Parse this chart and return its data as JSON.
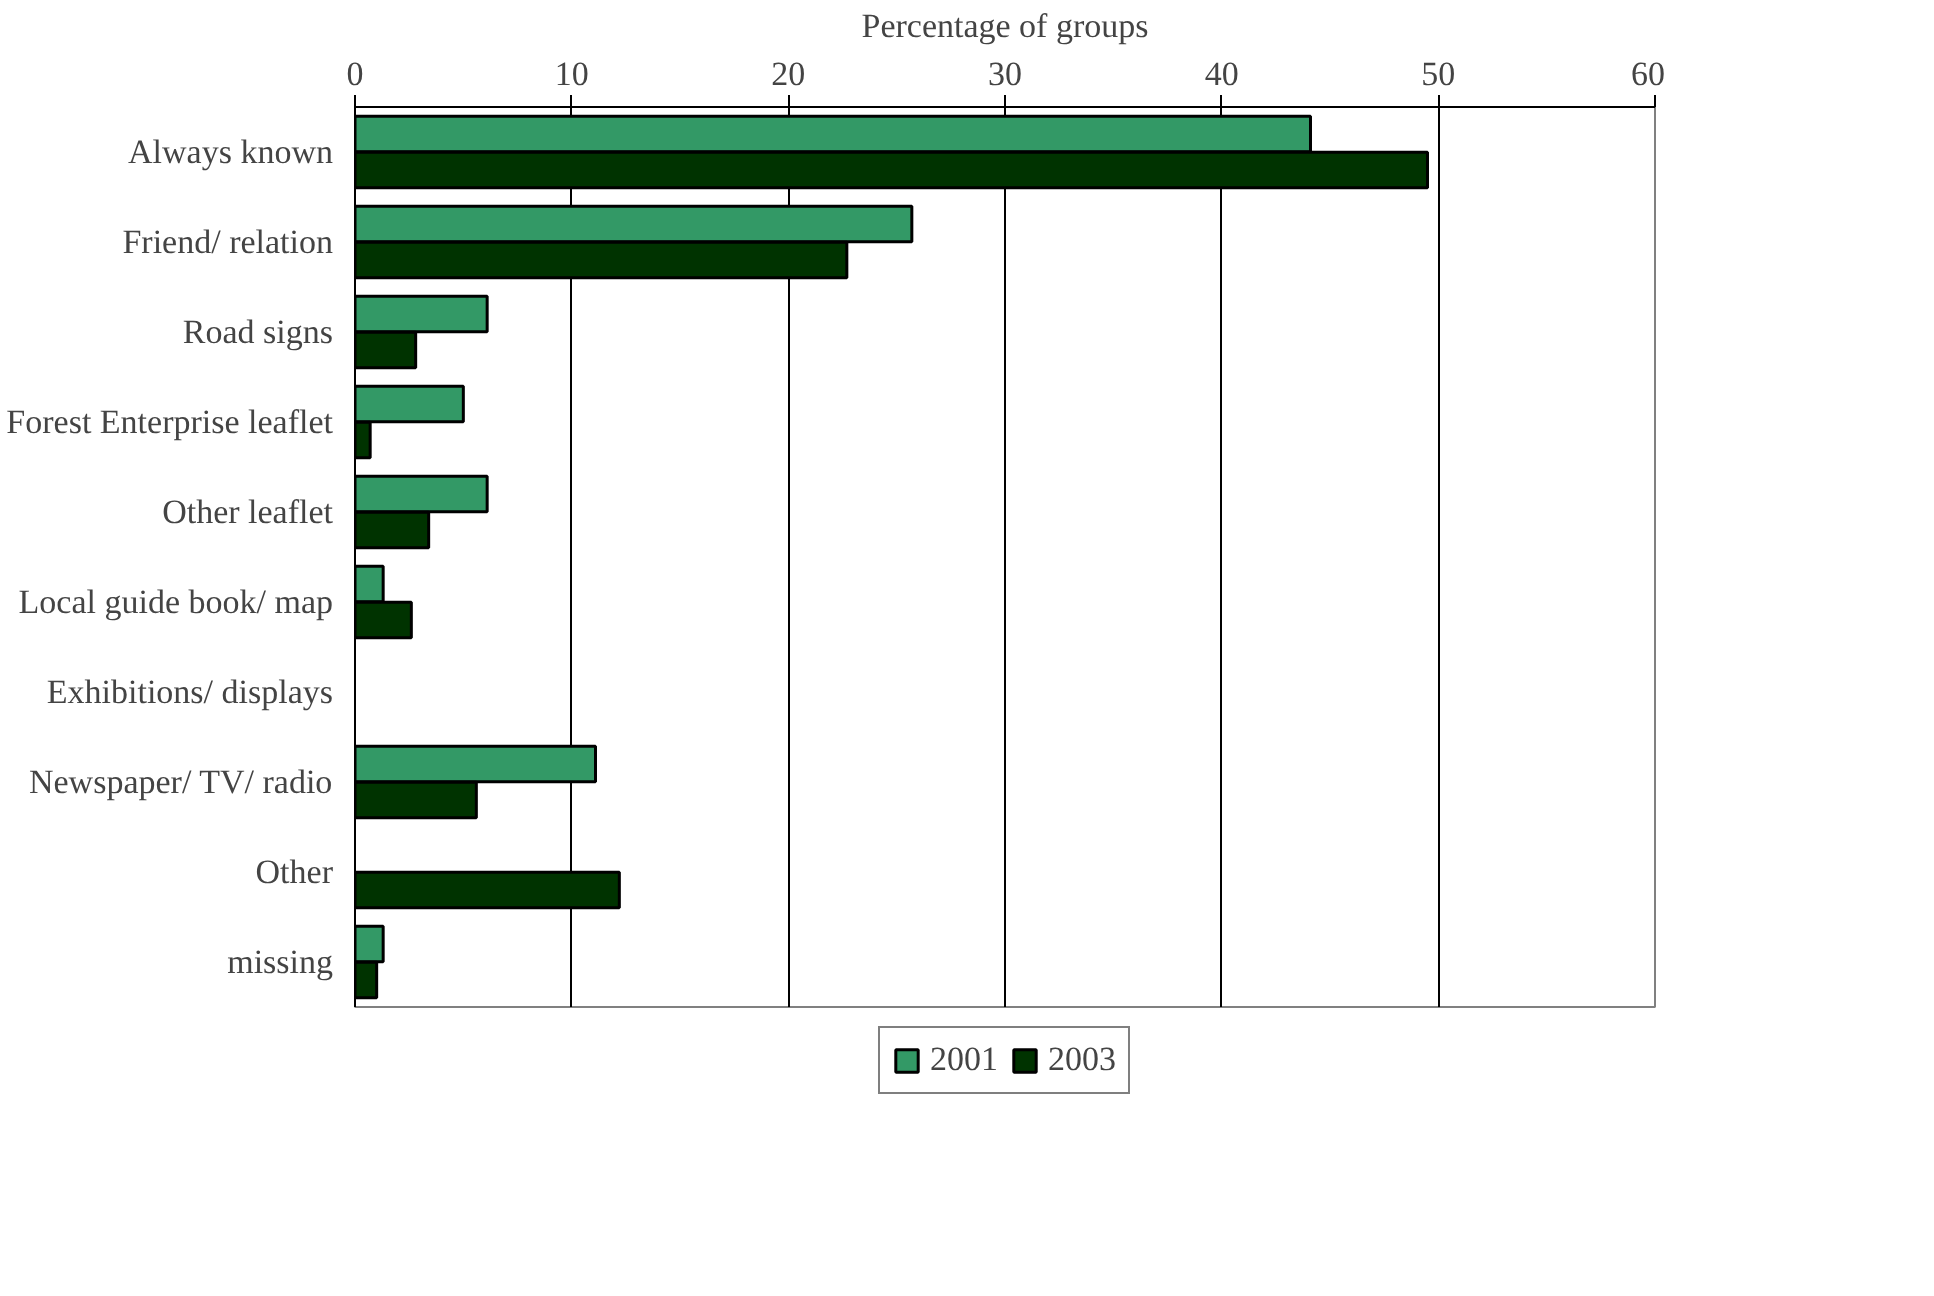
{
  "chart_data": {
    "type": "bar",
    "orientation": "horizontal",
    "xlabel": "Percentage of groups",
    "categories": [
      "Always known",
      "Friend/ relation",
      "Road signs",
      "Forest Enterprise leaflet",
      "Other leaflet",
      "Local guide book/ map",
      "Exhibitions/ displays",
      "Newspaper/ TV/ radio",
      "Other",
      "missing"
    ],
    "series": [
      {
        "name": "2001",
        "color": "#339966",
        "values": [
          44.1,
          25.7,
          6.1,
          5.0,
          6.1,
          1.3,
          null,
          11.1,
          null,
          1.3
        ]
      },
      {
        "name": "2003",
        "color": "#003300",
        "values": [
          49.5,
          22.7,
          2.8,
          0.7,
          3.4,
          2.6,
          null,
          5.6,
          12.2,
          1.0
        ]
      }
    ],
    "xlim": [
      0,
      60
    ],
    "xticks": [
      0,
      10,
      20,
      30,
      40,
      50,
      60
    ],
    "grid": "x",
    "legend": "bottom"
  }
}
